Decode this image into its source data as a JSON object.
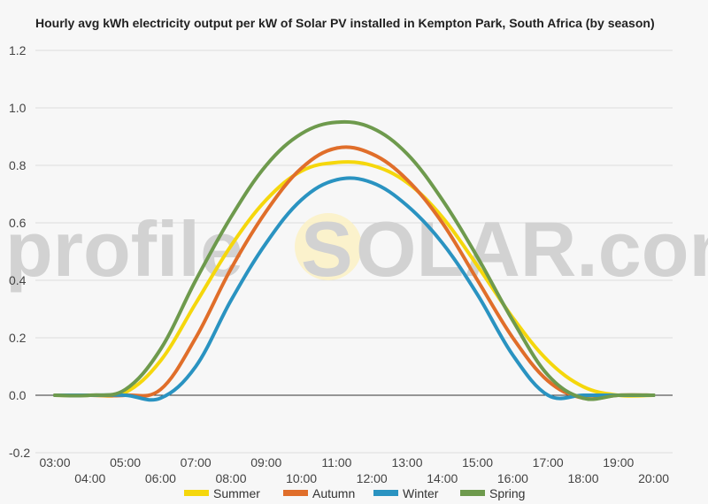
{
  "chart_data": {
    "type": "line",
    "title": "Hourly avg kWh electricity output per kW of Solar PV installed in Kempton Park, South Africa (by season)",
    "xlabel": "",
    "ylabel": "",
    "ylim": [
      -0.2,
      1.2
    ],
    "yticks": [
      -0.2,
      0.0,
      0.2,
      0.4,
      0.6,
      0.8,
      1.0,
      1.2
    ],
    "ytick_labels": [
      "-0.2",
      "0.0",
      "0.2",
      "0.4",
      "0.6",
      "0.8",
      "1.0",
      "1.2"
    ],
    "x": [
      "03:00",
      "04:00",
      "05:00",
      "06:00",
      "07:00",
      "08:00",
      "09:00",
      "10:00",
      "11:00",
      "12:00",
      "13:00",
      "14:00",
      "15:00",
      "16:00",
      "17:00",
      "18:00",
      "19:00",
      "20:00"
    ],
    "grid": true,
    "legend": "bottom",
    "series": [
      {
        "name": "Summer",
        "color": "#f5d70c",
        "values": [
          0,
          0,
          0.01,
          0.12,
          0.32,
          0.52,
          0.68,
          0.78,
          0.81,
          0.8,
          0.74,
          0.62,
          0.45,
          0.27,
          0.12,
          0.03,
          0,
          0
        ]
      },
      {
        "name": "Autumn",
        "color": "#e06e2a",
        "values": [
          0,
          0,
          0,
          0.02,
          0.2,
          0.44,
          0.64,
          0.79,
          0.86,
          0.84,
          0.75,
          0.6,
          0.4,
          0.2,
          0.05,
          -0.01,
          0,
          0
        ]
      },
      {
        "name": "Winter",
        "color": "#2a93c1",
        "values": [
          0,
          0,
          0,
          -0.01,
          0.1,
          0.33,
          0.53,
          0.68,
          0.75,
          0.74,
          0.66,
          0.53,
          0.35,
          0.14,
          0,
          0,
          0,
          0
        ]
      },
      {
        "name": "Spring",
        "color": "#6e9a4d",
        "values": [
          0,
          0,
          0.02,
          0.16,
          0.4,
          0.62,
          0.8,
          0.91,
          0.95,
          0.93,
          0.84,
          0.68,
          0.48,
          0.26,
          0.07,
          -0.01,
          0,
          0
        ]
      }
    ]
  },
  "watermark": {
    "part1": "profile",
    "sun_letter": "S",
    "part2": "OLAR.com"
  }
}
